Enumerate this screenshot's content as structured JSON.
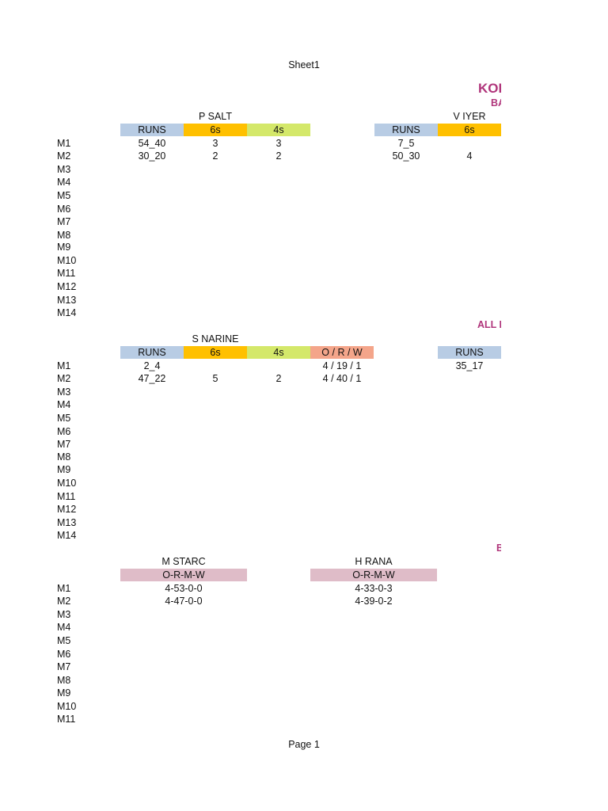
{
  "sheet_title": "Sheet1",
  "page_footer": "Page 1",
  "section_headers": {
    "main": "KOL",
    "batters": "BA",
    "all_rounders": "ALL R",
    "bowlers": "B"
  },
  "colors": {
    "runs_header": "#b8cce4",
    "sixes_header": "#ffc000",
    "fours_header": "#d4e86a",
    "orw_header": "#f4a58a",
    "bowl_header": "#dfbcc8",
    "section_text": "#b0357b"
  },
  "block1": {
    "row_labels": [
      "M1",
      "M2",
      "M3",
      "M4",
      "M5",
      "M6",
      "M7",
      "M8",
      "M9",
      "M10",
      "M11",
      "M12",
      "M13",
      "M14"
    ],
    "players": [
      {
        "name": "P SALT",
        "headers": [
          "RUNS",
          "6s",
          "4s"
        ],
        "rows": [
          [
            "54_40",
            "3",
            "3"
          ],
          [
            "30_20",
            "2",
            "2"
          ]
        ]
      },
      {
        "name": "V IYER",
        "headers": [
          "RUNS",
          "6s"
        ],
        "rows": [
          [
            "7_5",
            ""
          ],
          [
            "50_30",
            "4"
          ]
        ]
      }
    ]
  },
  "block2": {
    "row_labels": [
      "M1",
      "M2",
      "M3",
      "M4",
      "M5",
      "M6",
      "M7",
      "M8",
      "M9",
      "M10",
      "M11",
      "M12",
      "M13",
      "M14"
    ],
    "players": [
      {
        "name": "S NARINE",
        "headers": [
          "RUNS",
          "6s",
          "4s",
          "O / R / W"
        ],
        "rows": [
          [
            "2_4",
            "",
            "",
            "4 / 19 / 1"
          ],
          [
            "47_22",
            "5",
            "2",
            "4 / 40 / 1"
          ]
        ]
      },
      {
        "name": "",
        "headers": [
          "RUNS"
        ],
        "rows": [
          [
            "35_17"
          ]
        ]
      }
    ]
  },
  "block3": {
    "row_labels": [
      "M1",
      "M2",
      "M3",
      "M4",
      "M5",
      "M6",
      "M7",
      "M8",
      "M9",
      "M10",
      "M11"
    ],
    "players": [
      {
        "name": "M STARC",
        "headers": [
          "O-R-M-W"
        ],
        "rows": [
          [
            "4-53-0-0"
          ],
          [
            "4-47-0-0"
          ]
        ]
      },
      {
        "name": "H RANA",
        "headers": [
          "O-R-M-W"
        ],
        "rows": [
          [
            "4-33-0-3"
          ],
          [
            "4-39-0-2"
          ]
        ]
      }
    ]
  }
}
